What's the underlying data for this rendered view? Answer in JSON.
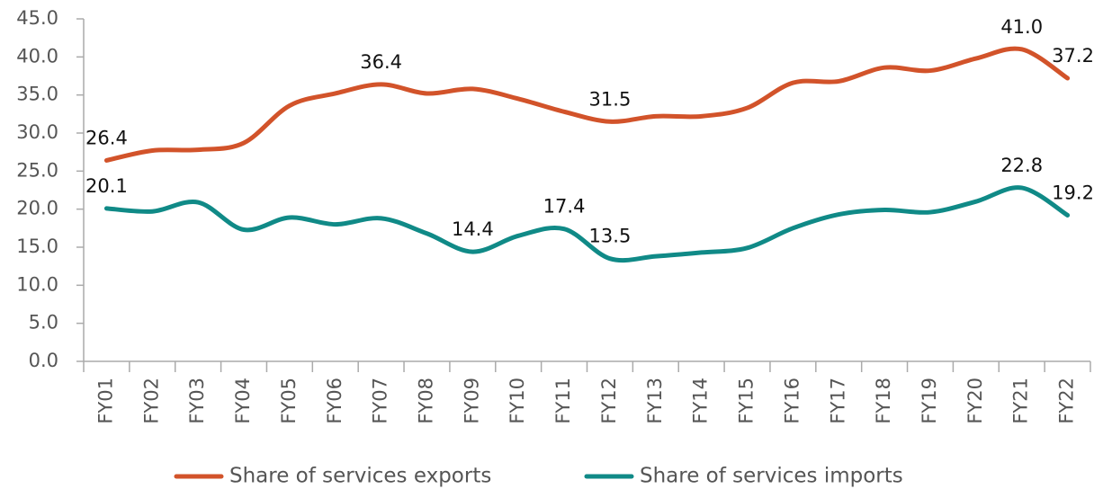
{
  "chart_data": {
    "type": "line",
    "categories": [
      "FY01",
      "FY02",
      "FY03",
      "FY04",
      "FY05",
      "FY06",
      "FY07",
      "FY08",
      "FY09",
      "FY10",
      "FY11",
      "FY12",
      "FY13",
      "FY14",
      "FY15",
      "FY16",
      "FY17",
      "FY18",
      "FY19",
      "FY20",
      "FY21",
      "FY22"
    ],
    "series": [
      {
        "name": "Share of services exports",
        "color": "#d2532a",
        "values": [
          26.4,
          27.7,
          27.8,
          28.7,
          33.6,
          35.2,
          36.4,
          35.2,
          35.8,
          34.5,
          32.8,
          31.5,
          32.2,
          32.2,
          33.3,
          36.6,
          36.8,
          38.6,
          38.2,
          39.8,
          41.0,
          37.2
        ],
        "value_labels": [
          "26.4",
          null,
          null,
          null,
          null,
          null,
          "36.4",
          null,
          null,
          null,
          null,
          "31.5",
          null,
          null,
          null,
          null,
          null,
          null,
          null,
          null,
          "41.0",
          "37.2"
        ]
      },
      {
        "name": "Share of services imports",
        "color": "#108a87",
        "values": [
          20.1,
          19.7,
          20.9,
          17.3,
          18.9,
          18.0,
          18.8,
          16.8,
          14.4,
          16.5,
          17.4,
          13.5,
          13.8,
          14.3,
          14.9,
          17.5,
          19.3,
          19.9,
          19.6,
          21.0,
          22.8,
          19.2
        ],
        "value_labels": [
          "20.1",
          null,
          null,
          null,
          null,
          null,
          null,
          null,
          "14.4",
          null,
          "17.4",
          "13.5",
          null,
          null,
          null,
          null,
          null,
          null,
          null,
          null,
          "22.8",
          "19.2"
        ]
      }
    ],
    "ylim": [
      0,
      45
    ],
    "yticks": [
      {
        "value": 0,
        "label": "0.0"
      },
      {
        "value": 5,
        "label": "5.0"
      },
      {
        "value": 10,
        "label": "10.0"
      },
      {
        "value": 15,
        "label": "15.0"
      },
      {
        "value": 20,
        "label": "20.0"
      },
      {
        "value": 25,
        "label": "25.0"
      },
      {
        "value": 30,
        "label": "30.0"
      },
      {
        "value": 35,
        "label": "35.0"
      },
      {
        "value": 40,
        "label": "40.0"
      },
      {
        "value": 45,
        "label": "45.0"
      }
    ],
    "grid": false,
    "legend": "bottom"
  }
}
